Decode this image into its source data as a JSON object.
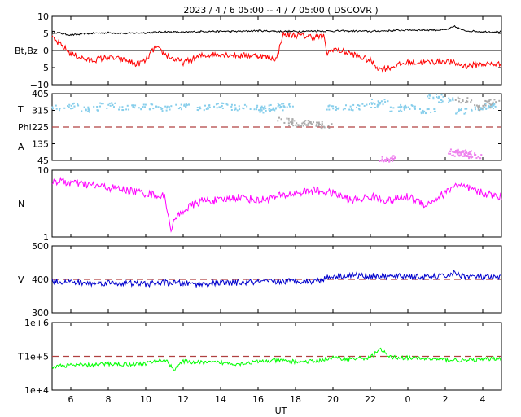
{
  "title": "2023  /   4 /   6   05:00  --   4 /   7   05:00  ( DSCOVR )",
  "x_axis": {
    "label": "UT",
    "ticks": [
      "6",
      "8",
      "10",
      "12",
      "14",
      "16",
      "18",
      "20",
      "22",
      "0",
      "2",
      "4"
    ],
    "tick_hours": [
      6,
      8,
      10,
      12,
      14,
      16,
      18,
      20,
      22,
      24,
      26,
      28
    ],
    "range_hours": [
      5,
      29
    ]
  },
  "chart_data": [
    {
      "type": "line",
      "panel": "magnetic-field",
      "ylabel": "Bt,Bz",
      "ylim": [
        -10,
        10
      ],
      "yticks": [
        "10",
        "5",
        "0",
        "−5",
        "−10"
      ],
      "ytick_values": [
        10,
        5,
        0,
        -5,
        -10
      ],
      "zero_line": 0,
      "series": [
        {
          "key": "Bt",
          "color": "#000000",
          "x": [
            5,
            6,
            7,
            8,
            9,
            10,
            11,
            12,
            13,
            14,
            15,
            16,
            17,
            18,
            19,
            20,
            21,
            22,
            23,
            24,
            25,
            26,
            26.5,
            27,
            28,
            29
          ],
          "y": [
            5.5,
            4.5,
            5.0,
            5.2,
            5.0,
            5.2,
            5.5,
            5.3,
            5.6,
            5.6,
            5.6,
            5.8,
            5.6,
            5.6,
            5.7,
            5.7,
            5.7,
            5.6,
            5.8,
            6.0,
            6.0,
            6.0,
            7.0,
            5.8,
            5.5,
            5.5
          ]
        },
        {
          "key": "Bz",
          "color": "#ff0000",
          "x": [
            5,
            5.5,
            6,
            7,
            8,
            9,
            9.5,
            10,
            10.5,
            11,
            11.5,
            12,
            13,
            14,
            15,
            16,
            17,
            17.3,
            18,
            19,
            19.5,
            19.7,
            20,
            21,
            22,
            22.5,
            23,
            24,
            25,
            26,
            27,
            28,
            29
          ],
          "y": [
            3.5,
            1.5,
            -1.0,
            -3.0,
            -2.0,
            -3.0,
            -4.0,
            -3.0,
            1.0,
            -1.0,
            -2.5,
            -3.5,
            -1.5,
            -1.0,
            -1.5,
            -1.5,
            -2.5,
            4.5,
            4.5,
            4.0,
            4.0,
            -1.0,
            0.5,
            -1.0,
            -3.0,
            -5.5,
            -5.0,
            -3.5,
            -3.5,
            -3.0,
            -4.5,
            -4.0,
            -4.0
          ]
        }
      ]
    },
    {
      "type": "scatter",
      "panel": "temperature-angles",
      "ylabels": [
        "T",
        "Phi",
        "A"
      ],
      "ylim": [
        45,
        405
      ],
      "yticks": [
        "405",
        "315",
        "225",
        "135",
        "45"
      ],
      "ytick_values": [
        405,
        315,
        225,
        135,
        45
      ],
      "reference_line": 225,
      "series": [
        {
          "key": "T",
          "color": "#87ceeb",
          "x": [
            5,
            6,
            7,
            8,
            9,
            10,
            11,
            12,
            13,
            14,
            15,
            16,
            16.5,
            17,
            17.5,
            20,
            21,
            22,
            22.5,
            23.5,
            24,
            25,
            25.5,
            26,
            27,
            28,
            28.5
          ],
          "y": [
            330,
            340,
            320,
            340,
            330,
            335,
            325,
            335,
            330,
            340,
            330,
            330,
            315,
            330,
            340,
            330,
            330,
            345,
            360,
            320,
            330,
            310,
            390,
            370,
            310,
            330,
            340
          ]
        },
        {
          "key": "Phi",
          "color": "#a9a9a9",
          "x": [
            17.5,
            18,
            18.5,
            19,
            19.5,
            27,
            28,
            28.5
          ],
          "y": [
            260,
            240,
            245,
            240,
            230,
            370,
            330,
            360
          ]
        },
        {
          "key": "A",
          "color": "#ee82ee",
          "x": [
            22.9,
            23.0,
            26.6,
            26.8,
            27.0,
            27.2,
            27.5
          ],
          "y": [
            50,
            55,
            90,
            80,
            85,
            75,
            70
          ]
        }
      ]
    },
    {
      "type": "line",
      "panel": "density",
      "ylabel": "N",
      "ylim": [
        1,
        10
      ],
      "log_scale": true,
      "yticks": [
        "10",
        "1"
      ],
      "ytick_values": [
        10,
        1
      ],
      "series": [
        {
          "key": "N",
          "color": "#ff00ff",
          "x": [
            5,
            6,
            7,
            8,
            9,
            10,
            11,
            11.3,
            11.7,
            12,
            12.5,
            13,
            14,
            15,
            16,
            17,
            18,
            19,
            20,
            21,
            22,
            23,
            24,
            25,
            26,
            26.5,
            27,
            28,
            29
          ],
          "y": [
            7.0,
            6.5,
            6.0,
            5.5,
            5.0,
            4.5,
            4.0,
            1.3,
            2.0,
            2.5,
            3.0,
            3.5,
            3.5,
            4.0,
            3.5,
            4.0,
            4.5,
            5.0,
            4.5,
            3.5,
            4.0,
            3.5,
            4.0,
            3.0,
            4.5,
            6.0,
            5.5,
            4.5,
            4.0
          ]
        }
      ]
    },
    {
      "type": "line",
      "panel": "speed",
      "ylabel": "V",
      "ylim": [
        300,
        500
      ],
      "yticks": [
        "500",
        "400",
        "300"
      ],
      "ytick_values": [
        500,
        400,
        300
      ],
      "reference_line": 400,
      "series": [
        {
          "key": "V",
          "color": "#0000cd",
          "x": [
            5,
            6,
            7,
            8,
            9,
            10,
            11,
            12,
            13,
            14,
            15,
            16,
            17,
            18,
            19,
            19.5,
            20,
            21,
            22,
            23,
            24,
            25,
            26,
            26.5,
            27,
            28,
            29
          ],
          "y": [
            395,
            392,
            388,
            390,
            388,
            386,
            390,
            388,
            386,
            389,
            390,
            392,
            393,
            396,
            394,
            402,
            410,
            412,
            410,
            408,
            410,
            406,
            410,
            418,
            410,
            406,
            404
          ]
        }
      ]
    },
    {
      "type": "line",
      "panel": "temperature-k",
      "ylabel": "T",
      "ylim": [
        10000,
        1000000
      ],
      "log_scale": true,
      "yticks": [
        "1e+6",
        "1e+5",
        "1e+4"
      ],
      "ytick_values": [
        1000000,
        100000,
        10000
      ],
      "reference_line": 100000,
      "series": [
        {
          "key": "Tp",
          "color": "#00ff00",
          "x": [
            5,
            6,
            7,
            8,
            9,
            10,
            11,
            11.5,
            12,
            13,
            14,
            15,
            16,
            17,
            18,
            19,
            20,
            21,
            22,
            22.5,
            23,
            24,
            25,
            26,
            27,
            28,
            29
          ],
          "y": [
            50000,
            55000,
            55000,
            60000,
            58000,
            62000,
            80000,
            40000,
            70000,
            65000,
            65000,
            60000,
            70000,
            75000,
            70000,
            70000,
            90000,
            85000,
            90000,
            160000,
            95000,
            90000,
            85000,
            80000,
            75000,
            80000,
            90000
          ]
        }
      ]
    }
  ]
}
